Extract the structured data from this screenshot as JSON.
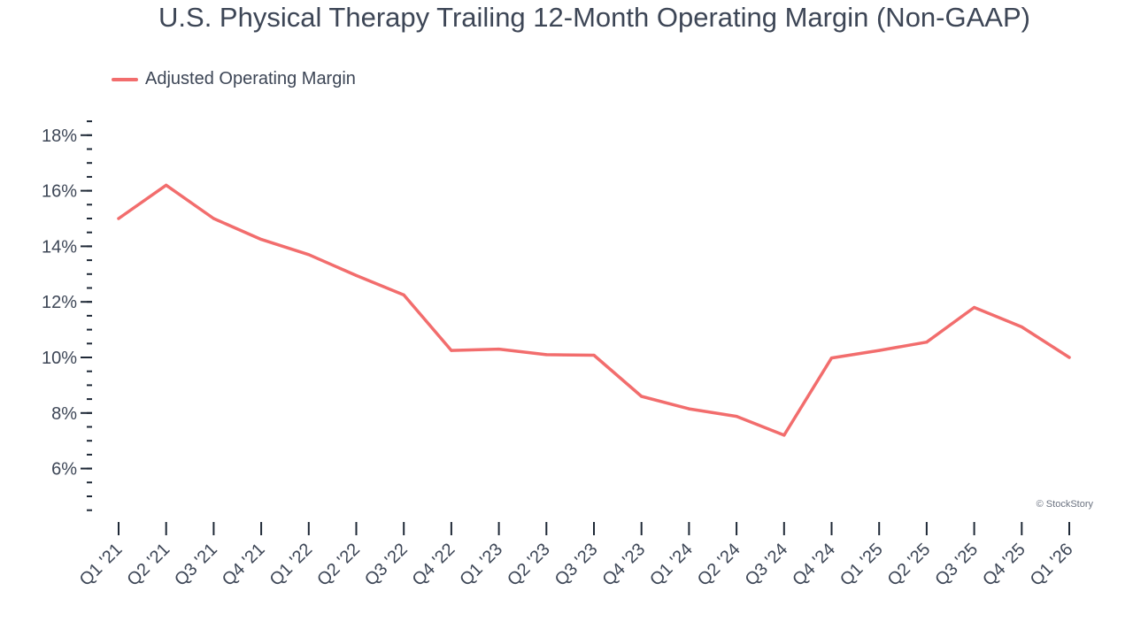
{
  "title": "U.S. Physical Therapy Trailing 12-Month Operating Margin (Non-GAAP)",
  "legend": {
    "label": "Adjusted Operating Margin"
  },
  "credit": "© StockStory",
  "colors": {
    "line": "#f26d6d",
    "text": "#3d4656",
    "axis": "#1f2937"
  },
  "chart_data": {
    "type": "line",
    "title": "U.S. Physical Therapy Trailing 12-Month Operating Margin (Non-GAAP)",
    "xlabel": "",
    "ylabel": "",
    "ylim": [
      4.5,
      18.5
    ],
    "yticks": [
      6,
      8,
      10,
      12,
      14,
      16,
      18
    ],
    "ytick_labels": [
      "6%",
      "8%",
      "10%",
      "12%",
      "14%",
      "16%",
      "18%"
    ],
    "grid": false,
    "legend_position": "top-left",
    "categories": [
      "Q1 '21",
      "Q2 '21",
      "Q3 '21",
      "Q4 '21",
      "Q1 '22",
      "Q2 '22",
      "Q3 '22",
      "Q4 '22",
      "Q1 '23",
      "Q2 '23",
      "Q3 '23",
      "Q4 '23",
      "Q1 '24",
      "Q2 '24",
      "Q3 '24",
      "Q4 '24",
      "Q1 '25",
      "Q2 '25",
      "Q3 '25",
      "Q4 '25",
      "Q1 '26"
    ],
    "series": [
      {
        "name": "Adjusted Operating Margin",
        "values": [
          15.0,
          16.2,
          15.0,
          14.25,
          13.7,
          12.95,
          12.25,
          10.25,
          10.3,
          10.1,
          10.08,
          8.6,
          8.15,
          7.88,
          7.2,
          9.98,
          10.25,
          10.55,
          11.8,
          11.1,
          10.0
        ]
      }
    ]
  }
}
